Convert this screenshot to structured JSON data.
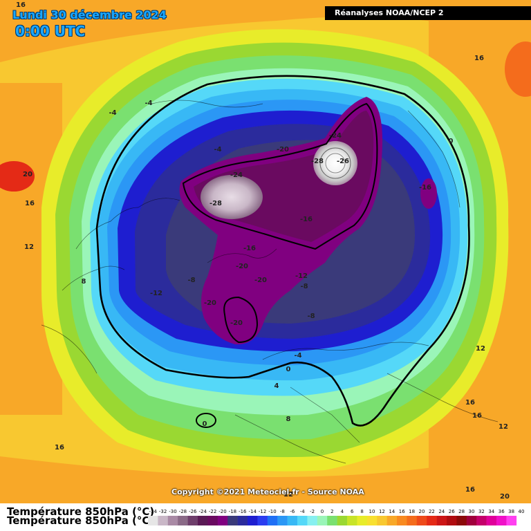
{
  "header": {
    "date": "Lundi 30 décembre 2024",
    "time": "0:00 UTC",
    "source": "Réanalyses NOAA/NCEP 2"
  },
  "copyright": "Copyright ©2021 Meteociel.fr - Source NOAA",
  "legend": {
    "title": "Température 850hPa (°C)",
    "ticks": [
      "-34",
      "-32",
      "-30",
      "-28",
      "-26",
      "-24",
      "-22",
      "-20",
      "-18",
      "-16",
      "-14",
      "-12",
      "-10",
      "-8",
      "-6",
      "-4",
      "-2",
      "0",
      "2",
      "4",
      "6",
      "8",
      "10",
      "12",
      "14",
      "16",
      "18",
      "20",
      "22",
      "24",
      "26",
      "28",
      "30",
      "32",
      "34",
      "36",
      "38",
      "40"
    ],
    "colors": [
      "#e6e6e6",
      "#c9b7c7",
      "#a98aa5",
      "#8a6a87",
      "#6e3e6b",
      "#5a1a55",
      "#6a0a60",
      "#800080",
      "#3a3a7a",
      "#2b2b9c",
      "#1e1ed0",
      "#2a3cf0",
      "#1f6ff5",
      "#2b97f5",
      "#38b8f5",
      "#55d8f8",
      "#87f0f0",
      "#9af5b8",
      "#7ae070",
      "#9ad832",
      "#c8e428",
      "#e8ec2a",
      "#f8e030",
      "#f8c830",
      "#f8a828",
      "#f88a20",
      "#f46c1c",
      "#ee4a1a",
      "#e42a16",
      "#cc1616",
      "#b00c10",
      "#8c0a0a",
      "#a0003c",
      "#c4006a",
      "#e0009a",
      "#f010c8",
      "#ff40f0"
    ]
  },
  "map_labels": [
    {
      "text": "16",
      "pos": [
        30,
        10
      ]
    },
    {
      "text": "-4",
      "pos": [
        215,
        152
      ]
    },
    {
      "text": "-4",
      "pos": [
        163,
        166
      ]
    },
    {
      "text": "-4",
      "pos": [
        315,
        219
      ]
    },
    {
      "text": "-20",
      "pos": [
        409,
        219
      ]
    },
    {
      "text": "-24",
      "pos": [
        485,
        199
      ]
    },
    {
      "text": "-28",
      "pos": [
        459,
        236
      ]
    },
    {
      "text": "-26",
      "pos": [
        496,
        236
      ]
    },
    {
      "text": "-24",
      "pos": [
        342,
        256
      ]
    },
    {
      "text": "-28",
      "pos": [
        312,
        297
      ]
    },
    {
      "text": "-16",
      "pos": [
        615,
        274
      ]
    },
    {
      "text": "-16",
      "pos": [
        443,
        320
      ]
    },
    {
      "text": "-16",
      "pos": [
        361,
        362
      ]
    },
    {
      "text": "-20",
      "pos": [
        350,
        388
      ]
    },
    {
      "text": "-20",
      "pos": [
        377,
        408
      ]
    },
    {
      "text": "-12",
      "pos": [
        436,
        402
      ]
    },
    {
      "text": "-8",
      "pos": [
        440,
        417
      ]
    },
    {
      "text": "-8",
      "pos": [
        277,
        408
      ]
    },
    {
      "text": "-12",
      "pos": [
        226,
        427
      ]
    },
    {
      "text": "-20",
      "pos": [
        304,
        441
      ]
    },
    {
      "text": "-8",
      "pos": [
        450,
        460
      ]
    },
    {
      "text": "-20",
      "pos": [
        342,
        470
      ]
    },
    {
      "text": "20",
      "pos": [
        40,
        255
      ]
    },
    {
      "text": "16",
      "pos": [
        43,
        297
      ]
    },
    {
      "text": "12",
      "pos": [
        42,
        360
      ]
    },
    {
      "text": "8",
      "pos": [
        121,
        410
      ]
    },
    {
      "text": "16",
      "pos": [
        693,
        87
      ]
    },
    {
      "text": "0",
      "pos": [
        652,
        207
      ]
    },
    {
      "text": "-4",
      "pos": [
        431,
        517
      ]
    },
    {
      "text": "0",
      "pos": [
        417,
        537
      ]
    },
    {
      "text": "4",
      "pos": [
        400,
        561
      ]
    },
    {
      "text": "0",
      "pos": [
        296,
        616
      ]
    },
    {
      "text": "8",
      "pos": [
        417,
        609
      ]
    },
    {
      "text": "12",
      "pos": [
        695,
        507
      ]
    },
    {
      "text": "16",
      "pos": [
        680,
        585
      ]
    },
    {
      "text": "16",
      "pos": [
        690,
        604
      ]
    },
    {
      "text": "12",
      "pos": [
        728,
        620
      ]
    },
    {
      "text": "16",
      "pos": [
        86,
        650
      ]
    },
    {
      "text": "12",
      "pos": [
        417,
        718
      ]
    },
    {
      "text": "16",
      "pos": [
        680,
        711
      ]
    },
    {
      "text": "20",
      "pos": [
        730,
        721
      ]
    }
  ]
}
